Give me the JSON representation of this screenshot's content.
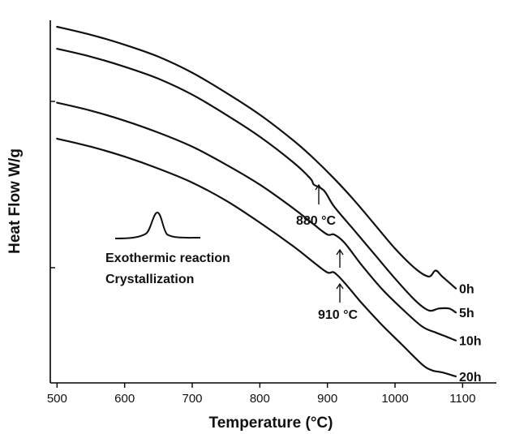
{
  "chart_data": {
    "type": "line",
    "xlabel": "Temperature (°C)",
    "ylabel": "Heat Flow W/g",
    "xlim": [
      490,
      1150
    ],
    "x_ticks": [
      500,
      600,
      700,
      800,
      900,
      1000,
      1100
    ],
    "y_ticks_labeled": false,
    "grid": false,
    "legend": "inline labels at right end of each curve",
    "series": [
      {
        "name": "0h",
        "x": [
          500,
          550,
          600,
          650,
          700,
          750,
          800,
          850,
          880,
          910,
          940,
          970,
          1000,
          1030,
          1050,
          1060,
          1070,
          1090
        ],
        "y": [
          0.95,
          0.91,
          0.86,
          0.8,
          0.72,
          0.62,
          0.51,
          0.38,
          0.29,
          0.19,
          0.08,
          -0.04,
          -0.16,
          -0.26,
          -0.3,
          -0.27,
          -0.3,
          -0.36
        ]
      },
      {
        "name": "5h",
        "x": [
          500,
          550,
          600,
          650,
          700,
          750,
          800,
          850,
          875,
          880,
          895,
          910,
          940,
          970,
          1000,
          1030,
          1050,
          1065,
          1080,
          1090
        ],
        "y": [
          0.84,
          0.8,
          0.75,
          0.69,
          0.61,
          0.51,
          0.4,
          0.27,
          0.19,
          0.16,
          0.13,
          0.05,
          -0.07,
          -0.19,
          -0.31,
          -0.42,
          -0.47,
          -0.46,
          -0.46,
          -0.48
        ]
      },
      {
        "name": "10h",
        "x": [
          500,
          550,
          600,
          650,
          700,
          750,
          800,
          850,
          880,
          900,
          910,
          925,
          950,
          980,
          1010,
          1040,
          1060,
          1075,
          1090
        ],
        "y": [
          0.57,
          0.53,
          0.48,
          0.42,
          0.35,
          0.26,
          0.16,
          0.04,
          -0.04,
          -0.09,
          -0.09,
          -0.13,
          -0.24,
          -0.36,
          -0.46,
          -0.55,
          -0.58,
          -0.6,
          -0.62
        ]
      },
      {
        "name": "20h",
        "x": [
          500,
          550,
          600,
          650,
          700,
          750,
          800,
          850,
          880,
          900,
          910,
          925,
          950,
          980,
          1010,
          1040,
          1055,
          1070,
          1090
        ],
        "y": [
          0.39,
          0.35,
          0.3,
          0.24,
          0.17,
          0.08,
          -0.03,
          -0.15,
          -0.23,
          -0.28,
          -0.28,
          -0.33,
          -0.43,
          -0.54,
          -0.64,
          -0.74,
          -0.77,
          -0.78,
          -0.8
        ]
      }
    ],
    "annotations": [
      {
        "text": "880 °C",
        "x": 880
      },
      {
        "text": "910 °C",
        "x": 910
      },
      {
        "text": "Exothermic reaction"
      },
      {
        "text": "Crystallization"
      }
    ]
  }
}
